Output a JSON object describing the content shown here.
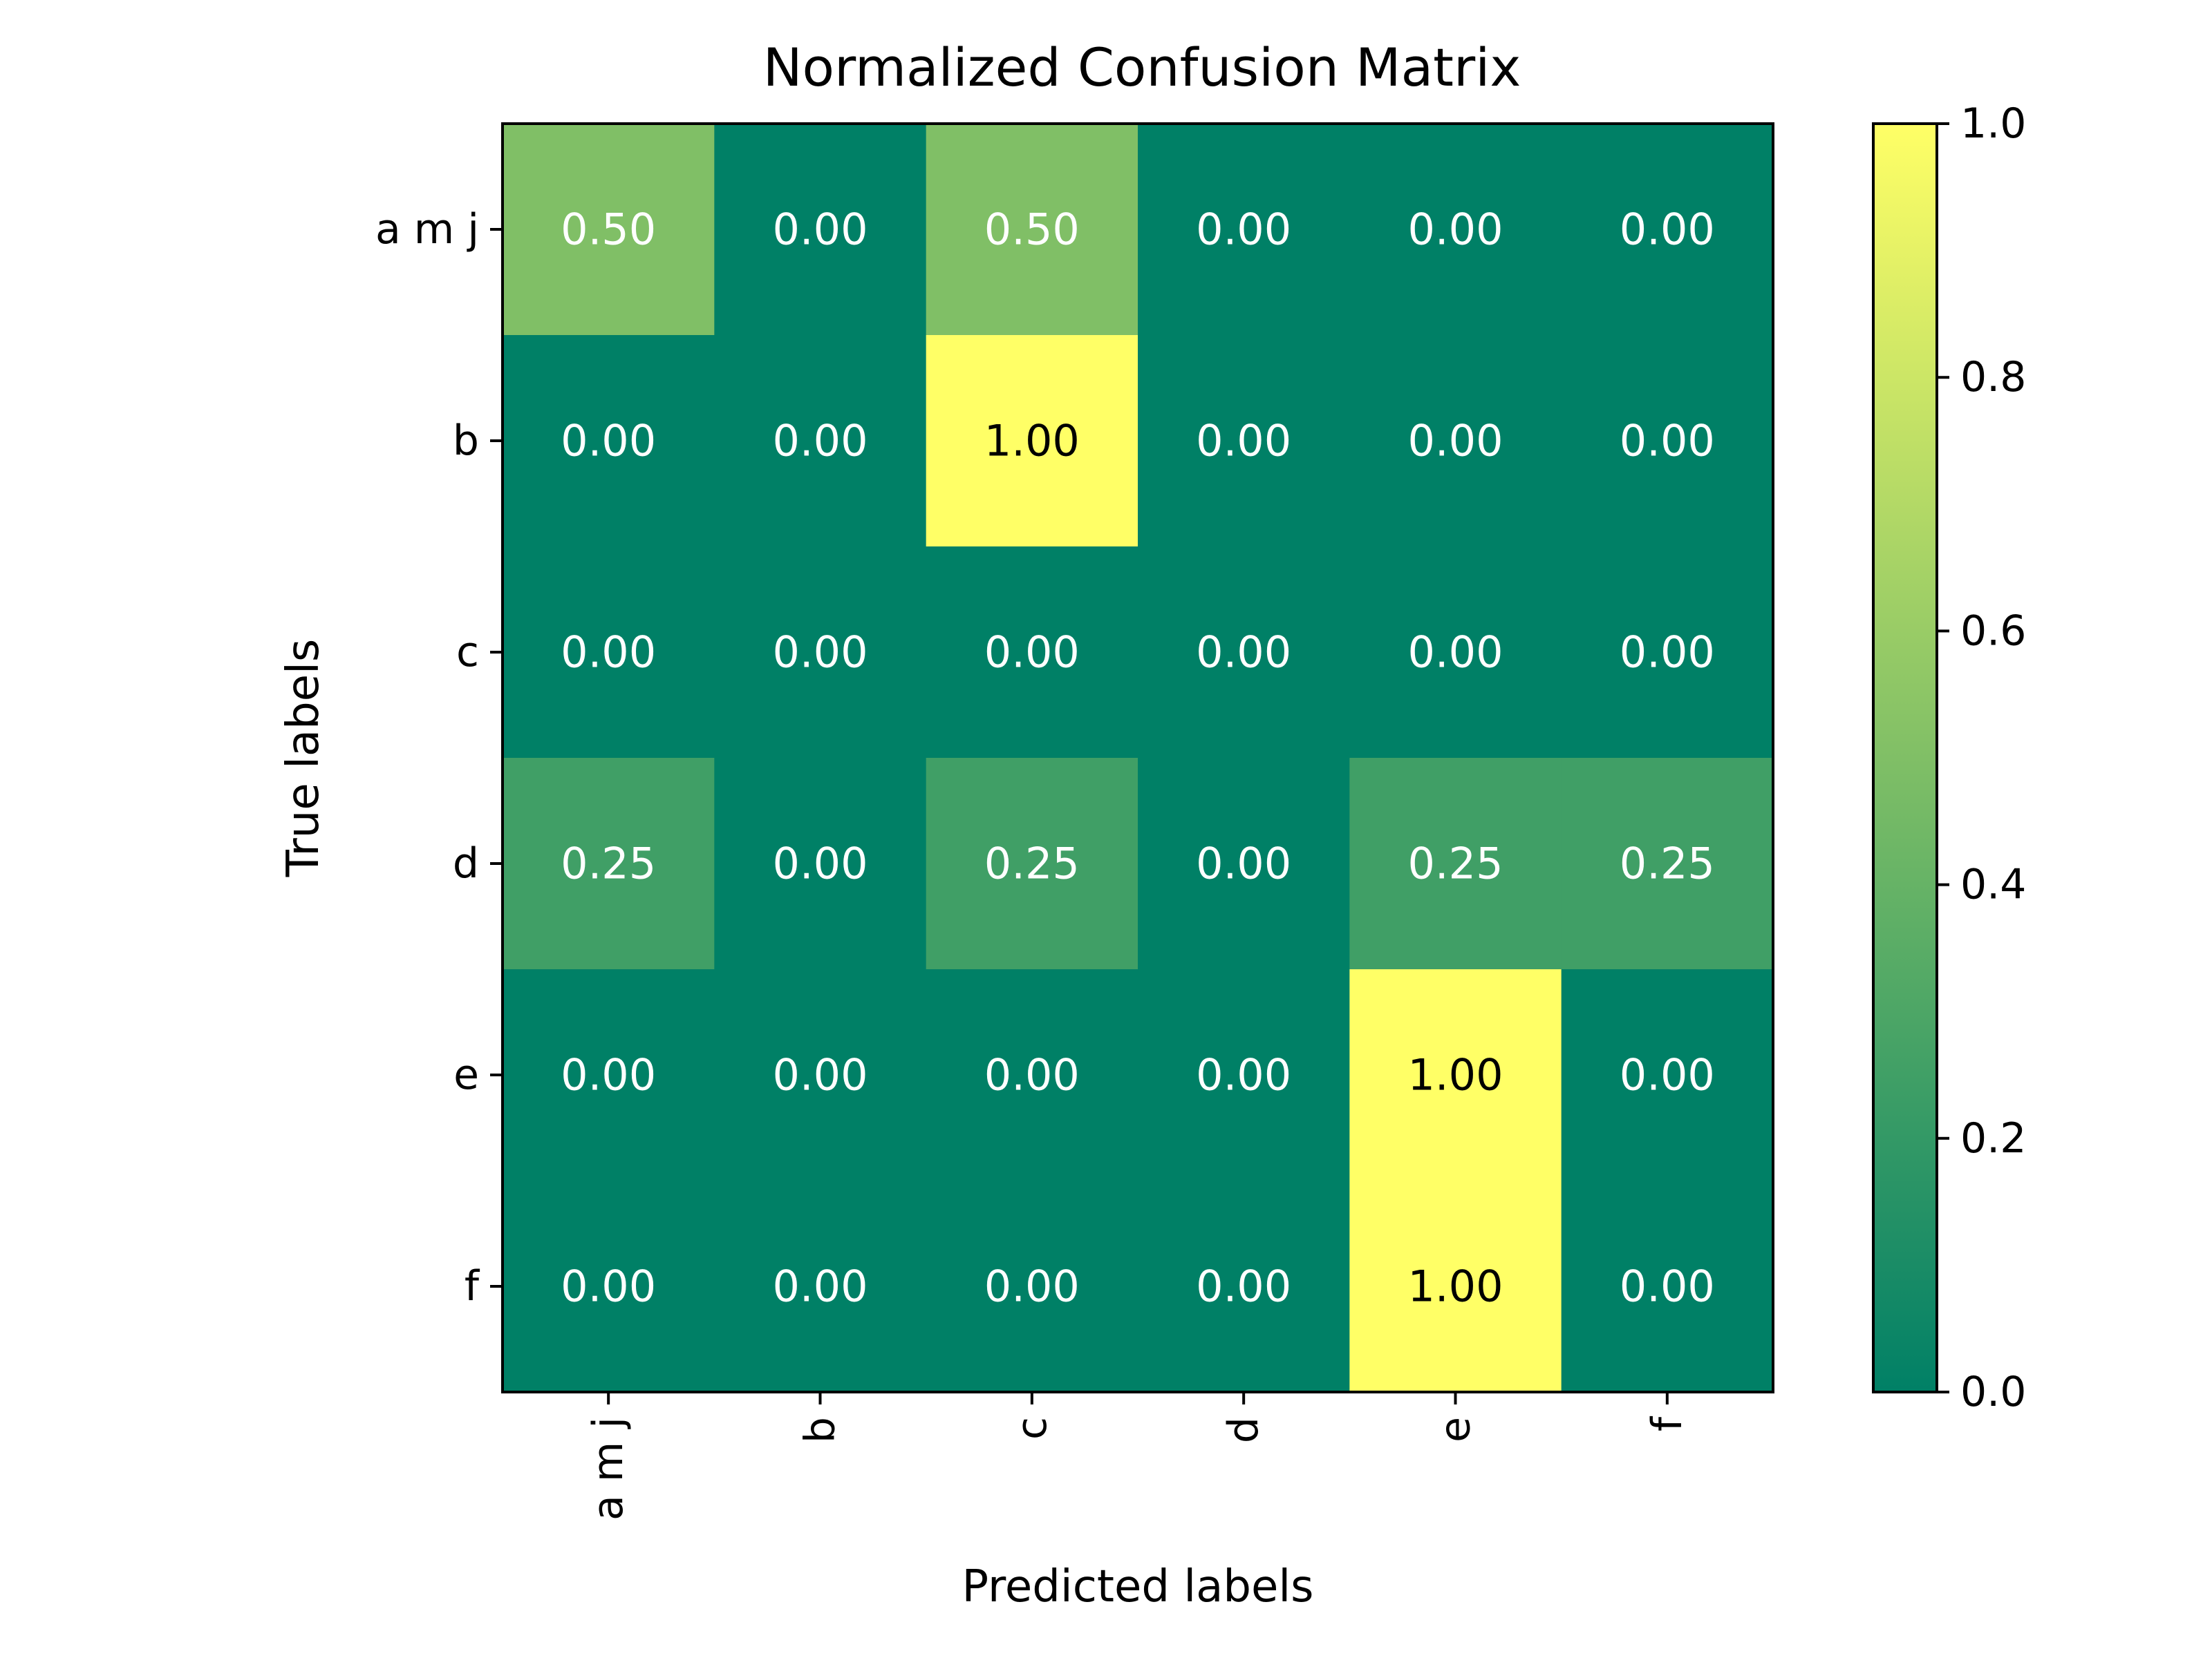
{
  "chart_data": {
    "type": "heatmap",
    "title": "Normalized Confusion Matrix",
    "xlabel": "Predicted labels",
    "ylabel": "True labels",
    "x_categories": [
      "a m j",
      "b",
      "c",
      "d",
      "e",
      "f"
    ],
    "y_categories": [
      "a m j",
      "b",
      "c",
      "d",
      "e",
      "f"
    ],
    "values": [
      [
        0.5,
        0.0,
        0.5,
        0.0,
        0.0,
        0.0
      ],
      [
        0.0,
        0.0,
        1.0,
        0.0,
        0.0,
        0.0
      ],
      [
        0.0,
        0.0,
        0.0,
        0.0,
        0.0,
        0.0
      ],
      [
        0.25,
        0.0,
        0.25,
        0.0,
        0.25,
        0.25
      ],
      [
        0.0,
        0.0,
        0.0,
        0.0,
        1.0,
        0.0
      ],
      [
        0.0,
        0.0,
        0.0,
        0.0,
        1.0,
        0.0
      ]
    ],
    "value_format": "2 decimals",
    "colormap": "summer",
    "color_range": [
      0.0,
      1.0
    ],
    "colorbar": {
      "ticks": [
        "0.0",
        "0.2",
        "0.4",
        "0.6",
        "0.8",
        "1.0"
      ]
    },
    "colors": {
      "low": "#008066",
      "high": "#ffff66",
      "text_dark": "#000000",
      "text_light": "#ffffff"
    },
    "x_tick_rotation": "vertical"
  }
}
